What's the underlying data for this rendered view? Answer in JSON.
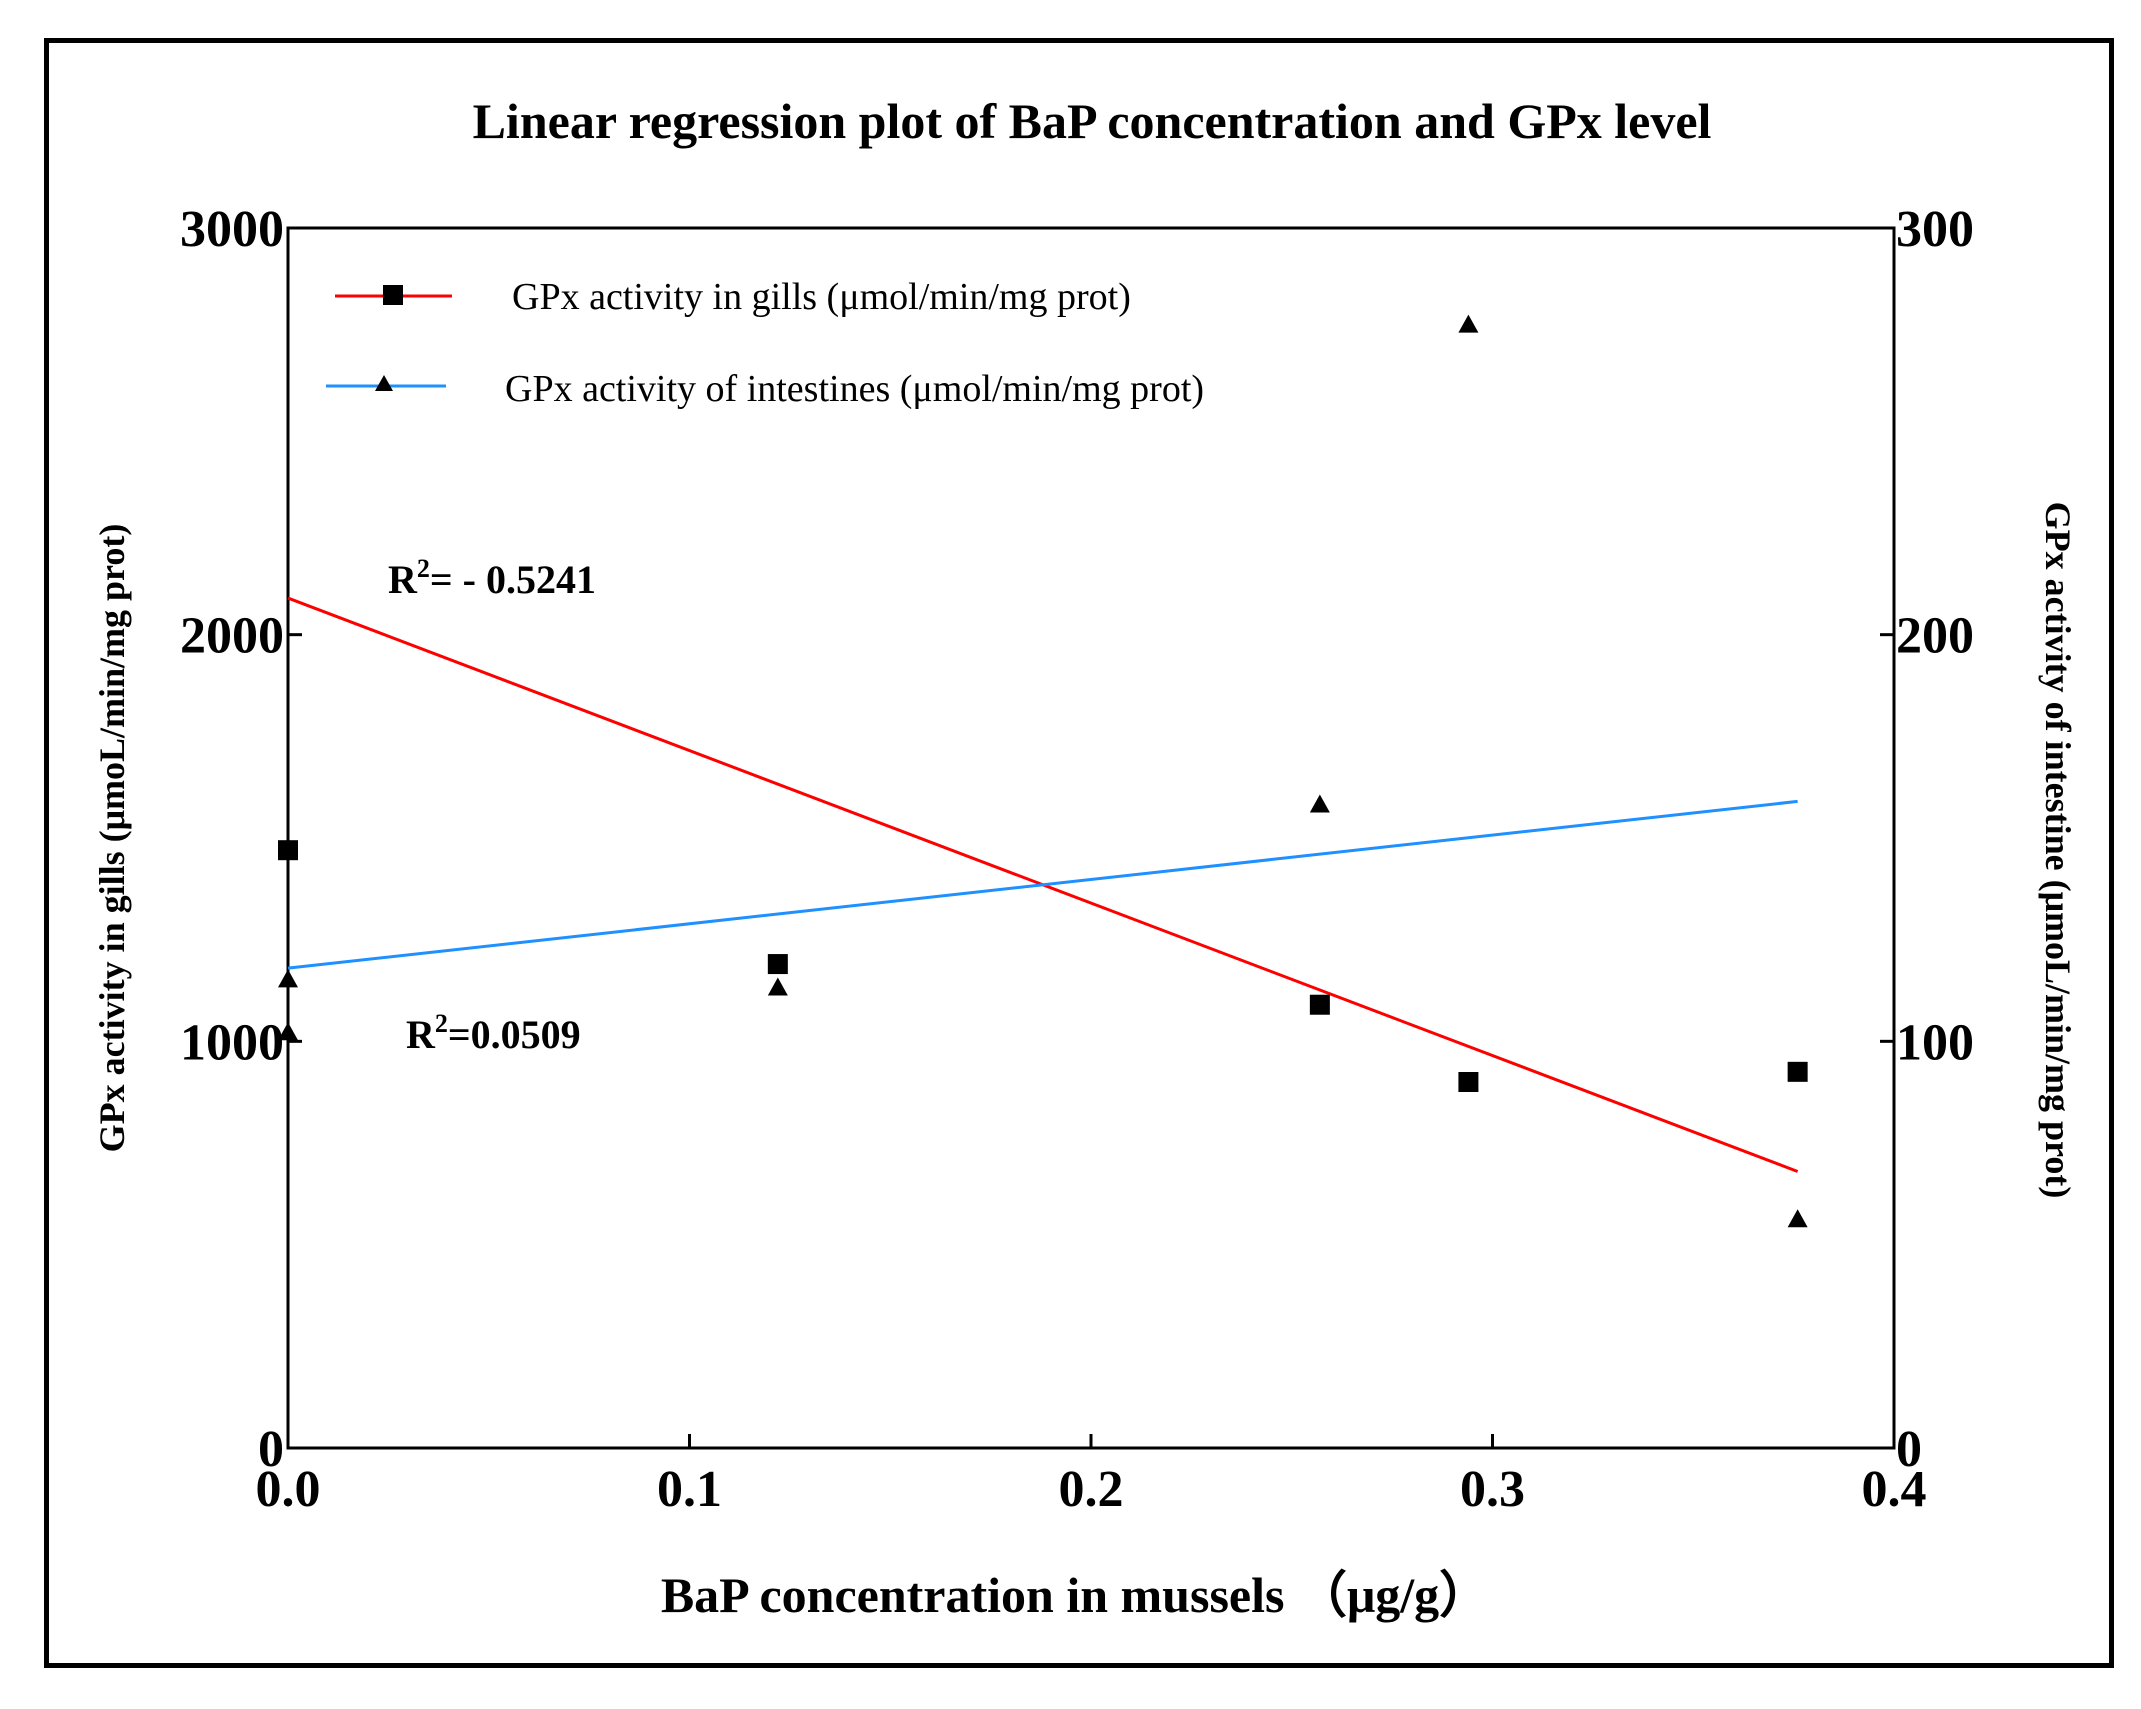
{
  "chart_data": {
    "type": "scatter",
    "title": "Linear regression plot of BaP concentration and GPx level",
    "xlabel": "BaP concentration in mussels （μg/g）",
    "ylabel_left": "GPx activity in gills (μmoL/min/mg prot)",
    "ylabel_right": "GPx activity of intestine (μmoL/min/mg prot)",
    "xlim": [
      0,
      0.4
    ],
    "ylim_left": [
      0,
      3000
    ],
    "ylim_right": [
      0,
      300
    ],
    "x_ticks": [
      "0.0",
      "0.1",
      "0.2",
      "0.3",
      "0.4"
    ],
    "y_ticks_left": [
      "0",
      "1000",
      "2000",
      "3000"
    ],
    "y_ticks_right": [
      "0",
      "100",
      "200",
      "300"
    ],
    "legend_position": "top-left",
    "series": [
      {
        "name": "GPx activity in gills (μmol/min/mg prot)",
        "axis": "left",
        "color": "#ff0000",
        "marker": "square",
        "x": [
          0.0,
          0.122,
          0.257,
          0.294,
          0.376
        ],
        "y": [
          1470,
          1190,
          1090,
          900,
          925
        ],
        "fit": {
          "x": [
            0.0,
            0.376
          ],
          "y": [
            2090,
            680
          ]
        },
        "r2_label": "R",
        "r2_sup": "2",
        "r2_value": "= - 0.5241"
      },
      {
        "name": "GPx activity of intestines (μmol/min/mg prot)",
        "axis": "right",
        "color": "#1e90ff",
        "marker": "triangle",
        "x": [
          0.0,
          0.0,
          0.122,
          0.257,
          0.294,
          0.376
        ],
        "y": [
          115,
          102,
          113,
          158,
          276,
          56
        ],
        "fit": {
          "x": [
            0.0,
            0.376
          ],
          "y": [
            118,
            159
          ]
        },
        "r2_label": "R",
        "r2_sup": "2",
        "r2_value": "=0.0509"
      }
    ]
  }
}
